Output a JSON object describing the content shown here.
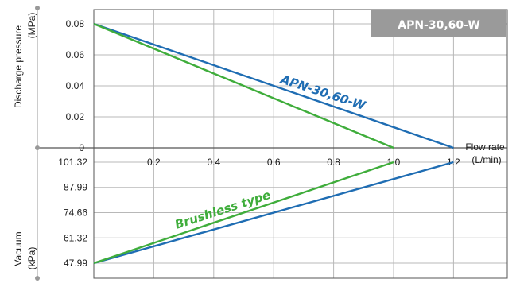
{
  "chart_data": {
    "type": "line",
    "model_badge": "APN-30,60-W",
    "colors": {
      "APN-30,60-W": "#1f6db3",
      "Brushless type": "#3fad3b",
      "badge": "#9a9a9a",
      "grid": "#b8b8b8",
      "axis": "#555555"
    },
    "x_axis": {
      "label": "Flow rate",
      "unit": "(L/min)",
      "ticks": [
        "0.2",
        "0.4",
        "0.6",
        "0.8",
        "1.0",
        "1.2"
      ],
      "range": [
        0,
        1.3
      ]
    },
    "upper_axis": {
      "label": "Discharge pressure",
      "unit": "(MPa)",
      "ticks": [
        "0.08",
        "0.06",
        "0.04",
        "0.02",
        "0"
      ],
      "range": [
        0,
        0.09
      ]
    },
    "lower_axis": {
      "label": "Vacuum",
      "unit": "(kPa)",
      "ticks": [
        "101.32",
        "87.99",
        "74.66",
        "61.32",
        "47.99"
      ]
    },
    "series": [
      {
        "name": "APN-30,60-W",
        "pressure": [
          {
            "x": 0,
            "y": 0.08
          },
          {
            "x": 1.2,
            "y": 0
          }
        ],
        "vacuum": [
          {
            "x": 0,
            "y": 47.99
          },
          {
            "x": 1.2,
            "y": 101.32
          }
        ]
      },
      {
        "name": "Brushless type",
        "pressure": [
          {
            "x": 0,
            "y": 0.08
          },
          {
            "x": 1.0,
            "y": 0
          }
        ],
        "vacuum": [
          {
            "x": 0,
            "y": 47.99
          },
          {
            "x": 1.0,
            "y": 101.32
          }
        ]
      }
    ]
  }
}
